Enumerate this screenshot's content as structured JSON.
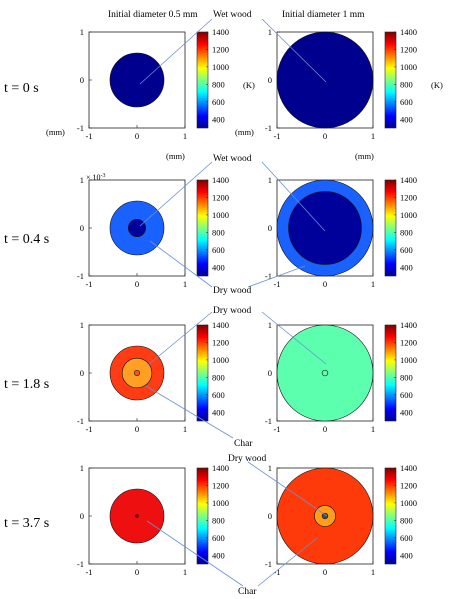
{
  "headers": {
    "left": "Initial diameter 0.5 mm",
    "right": "Initial diameter 1 mm"
  },
  "row_labels": [
    "t = 0 s",
    "t = 0.4 s",
    "t = 1.8 s",
    "t = 3.7 s"
  ],
  "units": {
    "kelvin": "(K)",
    "mm": "(mm)",
    "exponent_base": "× 10",
    "exponent_power": "-3"
  },
  "colorbar": {
    "min": 300,
    "max": 1400,
    "ticks": [
      "1400",
      "1200",
      "1000",
      "800",
      "600",
      "400"
    ]
  },
  "axis_ticks": {
    "y": [
      "1",
      "0",
      "-1"
    ],
    "x": [
      "-1",
      "0",
      "1"
    ]
  },
  "annotations": {
    "wet_wood": "Wet wood",
    "dry_wood": "Dry wood",
    "char": "Char"
  },
  "particles": [
    {
      "row": 0,
      "panel": "left",
      "layers": [
        {
          "radius_fraction": 1.0,
          "color": "#00008f"
        }
      ]
    },
    {
      "row": 0,
      "panel": "right",
      "layers": [
        {
          "radius_fraction": 1.0,
          "color": "#00008f"
        }
      ]
    },
    {
      "row": 1,
      "panel": "left",
      "layers": [
        {
          "radius_fraction": 1.0,
          "color": "#1a62ff"
        },
        {
          "radius_fraction": 0.32,
          "color": "#00009a"
        }
      ]
    },
    {
      "row": 1,
      "panel": "right",
      "layers": [
        {
          "radius_fraction": 1.0,
          "color": "#1a62ff"
        },
        {
          "radius_fraction": 0.76,
          "color": "#00009a"
        }
      ]
    },
    {
      "row": 2,
      "panel": "left",
      "layers": [
        {
          "radius_fraction": 1.0,
          "color": "#ff3c14"
        },
        {
          "radius_fraction": 0.55,
          "color": "#ff9f24"
        },
        {
          "radius_fraction": 0.1,
          "color": "#ff5020"
        }
      ]
    },
    {
      "row": 2,
      "panel": "right",
      "layers": [
        {
          "radius_fraction": 1.0,
          "color": "#5cffae"
        },
        {
          "radius_fraction": 0.06,
          "color": "#5cffae"
        }
      ]
    },
    {
      "row": 3,
      "panel": "left",
      "layers": [
        {
          "radius_fraction": 1.0,
          "color": "#ee1010"
        },
        {
          "radius_fraction": 0.05,
          "color": "#aa0000"
        }
      ]
    },
    {
      "row": 3,
      "panel": "right",
      "layers": [
        {
          "radius_fraction": 1.0,
          "color": "#ff3a0a"
        },
        {
          "radius_fraction": 0.22,
          "color": "#ff9e1a"
        },
        {
          "radius_fraction": 0.06,
          "color": "#4a4a4a"
        }
      ]
    }
  ]
}
